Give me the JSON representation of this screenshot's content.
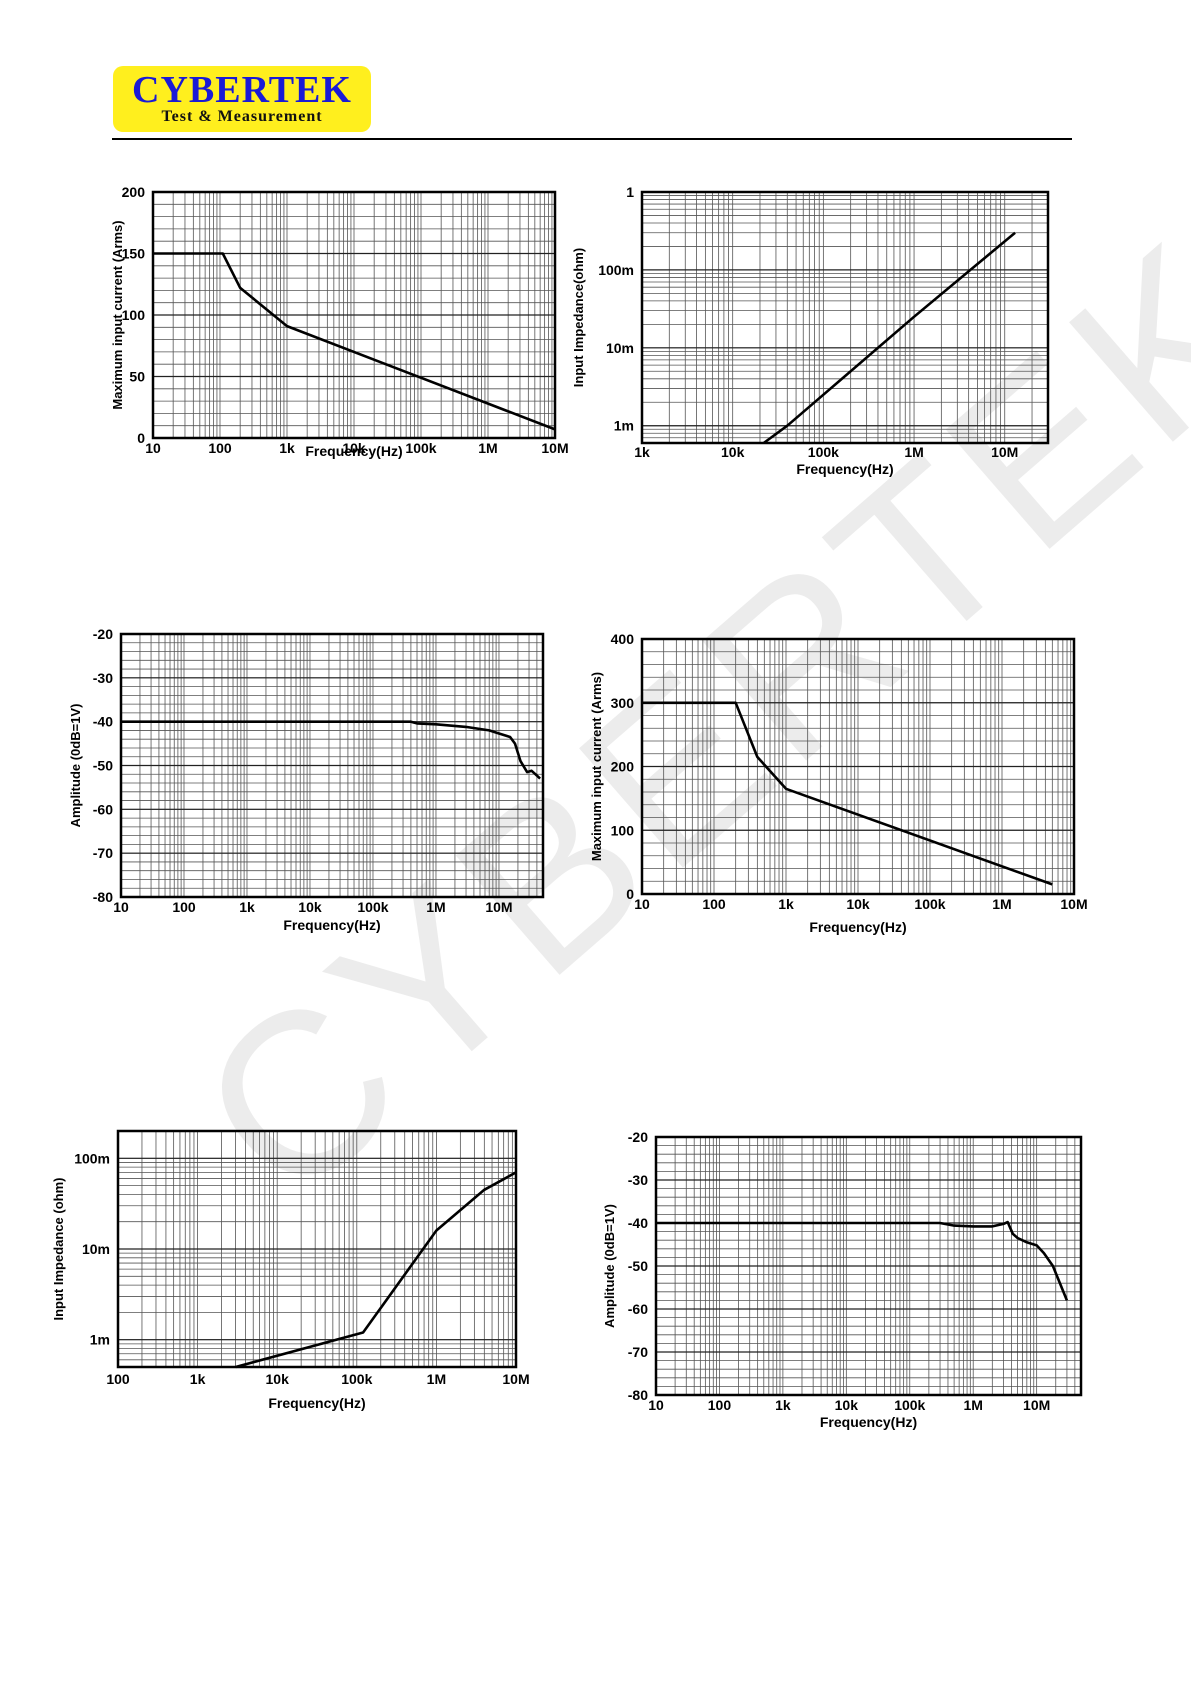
{
  "header": {
    "logo_main": "CYBERTEK",
    "logo_sub": "Test & Measurement",
    "watermark": "CYBERTEK",
    "colors": {
      "logo_bg": "#ffef1e",
      "logo_text": "#1a1ad6",
      "rule": "#000000"
    }
  },
  "chart_data": [
    {
      "type": "line",
      "xlabel": "Frequency(Hz)",
      "ylabel": "Maximum input current (Arms)",
      "xscale": "log",
      "yscale": "linear",
      "xlim": [
        10,
        10000000
      ],
      "ylim": [
        0,
        200
      ],
      "xticks": [
        10,
        100,
        1000,
        10000,
        100000,
        1000000,
        10000000
      ],
      "xtick_labels": [
        "10",
        "100",
        "1k",
        "10k",
        "100k",
        "1M",
        "10M"
      ],
      "yticks": [
        0,
        50,
        100,
        150,
        200
      ],
      "ytick_labels": [
        "0",
        "50",
        "100",
        "150",
        "200"
      ],
      "grid": true,
      "series": [
        {
          "x": [
            10,
            110,
            200,
            1000,
            10000000
          ],
          "y": [
            150,
            150,
            122,
            91,
            7
          ]
        }
      ]
    },
    {
      "type": "line",
      "xlabel": "Frequency(Hz)",
      "ylabel": "Input Impedance(ohm)",
      "xscale": "log",
      "yscale": "log",
      "xlim": [
        1000,
        30000000
      ],
      "ylim": [
        0.0006,
        1
      ],
      "xticks": [
        1000,
        10000,
        100000,
        1000000,
        10000000
      ],
      "xtick_labels": [
        "1k",
        "10k",
        "100k",
        "1M",
        "10M"
      ],
      "yticks": [
        0.001,
        0.01,
        0.1,
        1
      ],
      "ytick_labels": [
        "1m",
        "10m",
        "100m",
        "1"
      ],
      "grid": true,
      "series": [
        {
          "x": [
            22000,
            40000,
            100000,
            1000000,
            13000000
          ],
          "y": [
            0.0006,
            0.001,
            0.0025,
            0.025,
            0.3
          ]
        }
      ]
    },
    {
      "type": "line",
      "xlabel": "Frequency(Hz)",
      "ylabel": "Amplitude (0dB=1V)",
      "xscale": "log",
      "yscale": "linear",
      "xlim": [
        10,
        50000000
      ],
      "ylim": [
        -80,
        -20
      ],
      "xticks": [
        10,
        100,
        1000,
        10000,
        100000,
        1000000,
        10000000
      ],
      "xtick_labels": [
        "10",
        "100",
        "1k",
        "10k",
        "100k",
        "1M",
        "10M"
      ],
      "yticks": [
        -80,
        -70,
        -60,
        -50,
        -40,
        -30,
        -20
      ],
      "ytick_labels": [
        "-80",
        "-70",
        "-60",
        "-50",
        "-40",
        "-30",
        "-20"
      ],
      "grid": true,
      "series": [
        {
          "x": [
            10,
            400000,
            500000,
            1000000,
            3000000,
            7000000,
            10000000,
            15000000,
            18000000,
            22000000,
            28000000,
            33000000,
            38000000,
            45000000
          ],
          "y": [
            -40,
            -40,
            -40.4,
            -40.6,
            -41.2,
            -42,
            -42.7,
            -43.5,
            -45,
            -49,
            -51.5,
            -51.2,
            -52,
            -53
          ]
        }
      ]
    },
    {
      "type": "line",
      "xlabel": "Frequency(Hz)",
      "ylabel": "Maximum input current (Arms)",
      "xscale": "log",
      "yscale": "linear",
      "xlim": [
        10,
        10000000
      ],
      "ylim": [
        0,
        400
      ],
      "xticks": [
        10,
        100,
        1000,
        10000,
        100000,
        1000000,
        10000000
      ],
      "xtick_labels": [
        "10",
        "100",
        "1k",
        "10k",
        "100k",
        "1M",
        "10M"
      ],
      "yticks": [
        0,
        100,
        200,
        300,
        400
      ],
      "ytick_labels": [
        "0",
        "100",
        "200",
        "300",
        "400"
      ],
      "grid": true,
      "series": [
        {
          "x": [
            10,
            200,
            400,
            1000,
            5000000
          ],
          "y": [
            300,
            300,
            215,
            165,
            15
          ]
        }
      ]
    },
    {
      "type": "line",
      "xlabel": "Frequency(Hz)",
      "ylabel": "Input Impedance (ohm)",
      "xscale": "log",
      "yscale": "log",
      "xlim": [
        100,
        10000000
      ],
      "ylim": [
        0.0005,
        0.2
      ],
      "xticks": [
        100,
        1000,
        10000,
        100000,
        1000000,
        10000000
      ],
      "xtick_labels": [
        "100",
        "1k",
        "10k",
        "100k",
        "1M",
        "10M"
      ],
      "yticks": [
        0.001,
        0.01,
        0.1
      ],
      "ytick_labels": [
        "1m",
        "10m",
        "100m"
      ],
      "grid": true,
      "series": [
        {
          "x": [
            3000,
            120000,
            1000000,
            4000000,
            10000000
          ],
          "y": [
            0.0005,
            0.0012,
            0.016,
            0.045,
            0.07
          ]
        }
      ]
    },
    {
      "type": "line",
      "xlabel": "Frequency(Hz)",
      "ylabel": "Amplitude (0dB=1V)",
      "xscale": "log",
      "yscale": "linear",
      "xlim": [
        10,
        50000000
      ],
      "ylim": [
        -80,
        -20
      ],
      "xticks": [
        10,
        100,
        1000,
        10000,
        100000,
        1000000,
        10000000
      ],
      "xtick_labels": [
        "10",
        "100",
        "1k",
        "10k",
        "100k",
        "1M",
        "10M"
      ],
      "yticks": [
        -80,
        -70,
        -60,
        -50,
        -40,
        -30,
        -20
      ],
      "ytick_labels": [
        "-80",
        "-70",
        "-60",
        "-50",
        "-40",
        "-30",
        "-20"
      ],
      "grid": true,
      "series": [
        {
          "x": [
            10,
            300000,
            500000,
            1000000,
            2000000,
            3000000,
            3500000,
            4200000,
            5000000,
            7000000,
            10000000,
            13000000,
            18000000,
            30000000
          ],
          "y": [
            -40,
            -40,
            -40.6,
            -40.8,
            -40.8,
            -40.2,
            -39.8,
            -42.5,
            -43.5,
            -44.5,
            -45.2,
            -47,
            -50,
            -58
          ]
        }
      ]
    }
  ]
}
